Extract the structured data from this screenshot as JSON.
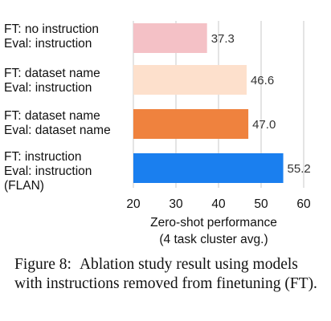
{
  "chart_data": {
    "type": "bar",
    "orientation": "horizontal",
    "categories": [
      [
        "FT: no instruction",
        "Eval: instruction"
      ],
      [
        "FT: dataset name",
        "Eval: instruction"
      ],
      [
        "FT: dataset name",
        "Eval: dataset name"
      ],
      [
        "FT: instruction",
        "Eval: instruction",
        "(FLAN)"
      ]
    ],
    "values": [
      37.3,
      46.6,
      47.0,
      55.2
    ],
    "value_labels": [
      "37.3",
      "46.6",
      "47.0",
      "55.2"
    ],
    "colors": [
      "#f4c1c6",
      "#fde0cc",
      "#ef823e",
      "#1a7fef"
    ],
    "xlim": [
      20,
      60
    ],
    "xticks": [
      20,
      30,
      40,
      50,
      60
    ],
    "xlabel": [
      "Zero-shot performance",
      "(4 task cluster avg.)"
    ],
    "grid": "vertical"
  },
  "caption": {
    "label": "Figure 8:",
    "text": "Ablation study result using models with instructions removed from finetuning (FT)."
  }
}
